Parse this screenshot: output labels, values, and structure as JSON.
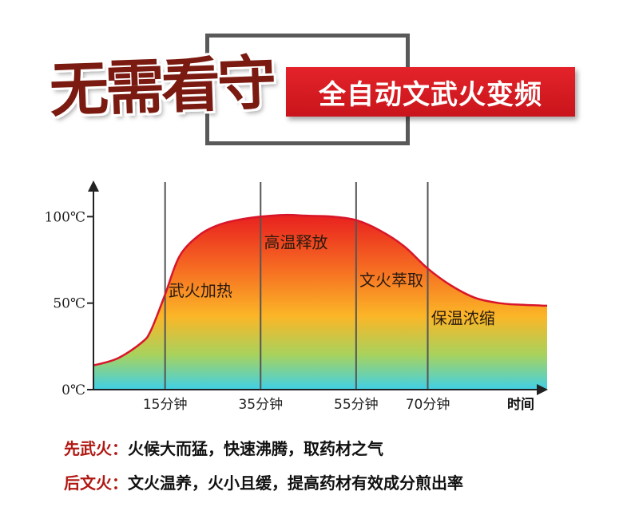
{
  "header": {
    "main_title": "无需看守",
    "sub_title": "全自动文武火变频"
  },
  "chart_data": {
    "type": "area",
    "title": "",
    "xlabel": "时间",
    "ylabel": "",
    "x": [
      0,
      5,
      10,
      12,
      15,
      18,
      22,
      26,
      30,
      35,
      40,
      45,
      50,
      55,
      60,
      65,
      70,
      75,
      80,
      85,
      90,
      95
    ],
    "values": [
      14,
      18,
      27,
      34,
      55,
      77,
      89,
      95,
      98,
      100,
      101,
      100.5,
      100,
      98,
      92,
      83,
      70,
      60,
      53,
      50,
      49,
      48.5
    ],
    "xlim": [
      0,
      95
    ],
    "ylim": [
      0,
      120
    ],
    "x_ticks": [
      15,
      35,
      55,
      70
    ],
    "x_tick_labels": [
      "15分钟",
      "35分钟",
      "55分钟",
      "70分钟"
    ],
    "y_ticks": [
      0,
      50,
      100
    ],
    "y_tick_labels": [
      "0℃",
      "50℃",
      "100℃"
    ],
    "stages": [
      {
        "label": "武火加热",
        "x": 15.2,
        "y": 54
      },
      {
        "label": "高温释放",
        "x": 35.2,
        "y": 82
      },
      {
        "label": "文火萃取",
        "x": 55.2,
        "y": 60
      },
      {
        "label": "保温浓缩",
        "x": 70.2,
        "y": 38
      }
    ],
    "grid": "vertical lines at x ticks",
    "fill_colors": [
      "#e8201f",
      "#f66a22",
      "#fbb627",
      "#a8d25d",
      "#3fd0e8"
    ],
    "line_color": "#d8162a"
  },
  "notes": [
    {
      "label": "先武火：",
      "text": "火候大而猛，快速沸腾，取药材之气"
    },
    {
      "label": "后文火：",
      "text": "文火温养，火小且缓，提高药材有效成分煎出率"
    }
  ]
}
